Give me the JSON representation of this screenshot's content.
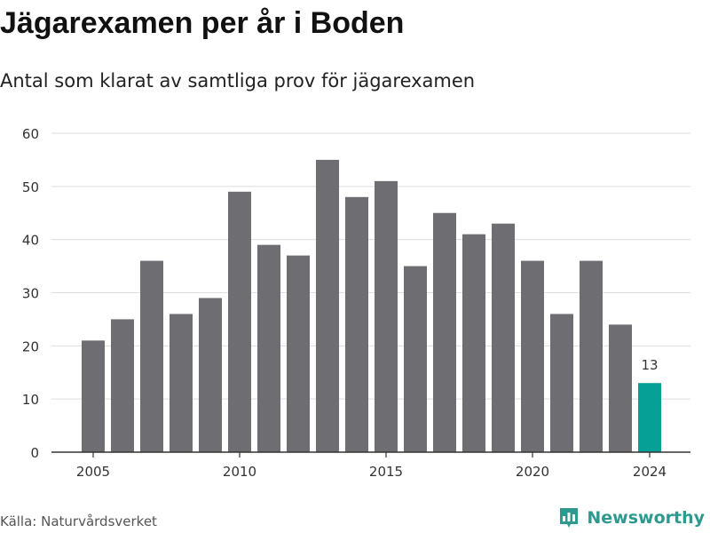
{
  "header": {
    "title": "Jägarexamen per år i Boden",
    "subtitle": "Antal som klarat av samtliga prov för jägarexamen"
  },
  "footer": {
    "source": "Källa: Naturvårdsverket",
    "brand": "Newsworthy"
  },
  "colors": {
    "bar": "#6e6d72",
    "highlight": "#06a096",
    "grid": "#dddddd",
    "brand": "#2e9a8f"
  },
  "chart_data": {
    "type": "bar",
    "x": [
      2005,
      2006,
      2007,
      2008,
      2009,
      2010,
      2011,
      2012,
      2013,
      2014,
      2015,
      2016,
      2017,
      2018,
      2019,
      2020,
      2021,
      2022,
      2023,
      2024
    ],
    "values": [
      21,
      25,
      36,
      26,
      29,
      49,
      39,
      37,
      55,
      48,
      51,
      35,
      45,
      41,
      43,
      36,
      26,
      36,
      24,
      13
    ],
    "highlight_x": 2024,
    "data_labels": [
      {
        "x": 2024,
        "label": "13"
      }
    ],
    "ylim": [
      0,
      60
    ],
    "y_ticks": [
      0,
      10,
      20,
      30,
      40,
      50,
      60
    ],
    "x_ticks": [
      2005,
      2010,
      2015,
      2020,
      2024
    ],
    "grid": true
  }
}
